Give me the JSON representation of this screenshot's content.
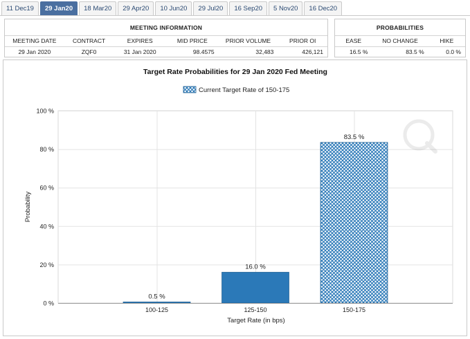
{
  "tabs": [
    {
      "label": "11 Dec19",
      "active": false
    },
    {
      "label": "29 Jan20",
      "active": true
    },
    {
      "label": "18 Mar20",
      "active": false
    },
    {
      "label": "29 Apr20",
      "active": false
    },
    {
      "label": "10 Jun20",
      "active": false
    },
    {
      "label": "29 Jul20",
      "active": false
    },
    {
      "label": "16 Sep20",
      "active": false
    },
    {
      "label": "5 Nov20",
      "active": false
    },
    {
      "label": "16 Dec20",
      "active": false
    }
  ],
  "meeting_info": {
    "title": "MEETING INFORMATION",
    "headers": [
      "MEETING DATE",
      "CONTRACT",
      "EXPIRES",
      "MID PRICE",
      "PRIOR VOLUME",
      "PRIOR OI"
    ],
    "values": [
      "29 Jan 2020",
      "ZQF0",
      "31 Jan 2020",
      "98.4575",
      "32,483",
      "426,121"
    ]
  },
  "probabilities": {
    "title": "PROBABILITIES",
    "headers": [
      "EASE",
      "NO CHANGE",
      "HIKE"
    ],
    "values": [
      "16.5 %",
      "83.5 %",
      "0.0 %"
    ]
  },
  "chart_data": {
    "type": "bar",
    "title": "Target Rate Probabilities for 29 Jan 2020 Fed Meeting",
    "legend": "Current Target Rate of 150-175",
    "xlabel": "Target Rate (in bps)",
    "ylabel": "Probability",
    "categories": [
      "100-125",
      "125-150",
      "150-175"
    ],
    "values": [
      0.5,
      16.0,
      83.5
    ],
    "value_labels": [
      "0.5 %",
      "16.0 %",
      "83.5 %"
    ],
    "current_category": "150-175",
    "ylim": [
      0,
      100
    ],
    "yticks": [
      0,
      20,
      40,
      60,
      80,
      100
    ],
    "ytick_labels": [
      "0 %",
      "20 %",
      "40 %",
      "60 %",
      "80 %",
      "100 %"
    ],
    "grid": true,
    "colors": {
      "bar": "#2b79b8",
      "bar_edge": "#1c5f95",
      "hatch_bg": "#ffffff",
      "grid": "#e3e3e3"
    }
  }
}
